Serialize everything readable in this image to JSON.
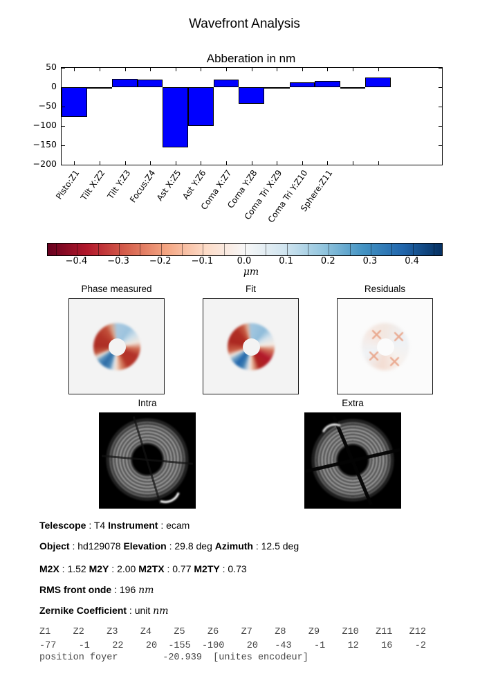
{
  "page_title": "Wavefront Analysis",
  "chart_data": {
    "type": "bar",
    "title": "Abberation in nm",
    "categories": [
      "Pisto:Z1",
      "Tilt X:Z2",
      "Tilt Y:Z3",
      "Focus:Z4",
      "Ast X:Z5",
      "Ast Y:Z6",
      "Coma X:Z7",
      "Coma Y:Z8",
      "Coma Tri X:Z9",
      "Coma Tri Y:Z10",
      "Sphere:Z11",
      "",
      ""
    ],
    "values": [
      -77,
      -1,
      22,
      20,
      -155,
      -100,
      20,
      -43,
      -1,
      12,
      16,
      -2,
      25
    ],
    "bar_color": "#0000ff",
    "ylim": [
      -200,
      50
    ],
    "yticks": [
      50,
      0,
      -50,
      -100,
      -150,
      -200
    ],
    "ytick_labels": [
      "50",
      "0",
      "−50",
      "−100",
      "−150",
      "−200"
    ],
    "xlabel": "",
    "ylabel": "",
    "grid": false,
    "legend": null
  },
  "colorbar": {
    "colormap": "RdBu",
    "colors": [
      "#67001f",
      "#b2182b",
      "#d6604d",
      "#f4a582",
      "#fddbc7",
      "#f7f7f7",
      "#d1e5f0",
      "#92c5de",
      "#4393c3",
      "#2166ac",
      "#053061"
    ],
    "range": [
      -0.47,
      0.47
    ],
    "tick_values": [
      -0.4,
      -0.3,
      -0.2,
      -0.1,
      0.0,
      0.1,
      0.2,
      0.3,
      0.4
    ],
    "tick_labels": [
      "−0.4",
      "−0.3",
      "−0.2",
      "−0.1",
      "0.0",
      "0.1",
      "0.2",
      "0.3",
      "0.4"
    ],
    "unit_label": "μm"
  },
  "panels": {
    "measured_title": "Phase measured",
    "fit_title": "Fit",
    "residuals_title": "Residuals"
  },
  "images": {
    "intra_title": "Intra",
    "extra_title": "Extra"
  },
  "info_lines": [
    [
      {
        "t": "Telescope",
        "b": true
      },
      {
        "t": " : T4 "
      },
      {
        "t": "Instrument",
        "b": true
      },
      {
        "t": " : ecam"
      }
    ],
    [
      {
        "t": "Object",
        "b": true
      },
      {
        "t": " : hd129078 "
      },
      {
        "t": "Elevation",
        "b": true
      },
      {
        "t": " : 29.8 deg "
      },
      {
        "t": "Azimuth",
        "b": true
      },
      {
        "t": " : 12.5 deg"
      }
    ],
    [
      {
        "t": "M2X",
        "b": true
      },
      {
        "t": " : 1.52 "
      },
      {
        "t": "M2Y",
        "b": true
      },
      {
        "t": " : 2.00 "
      },
      {
        "t": "M2TX",
        "b": true
      },
      {
        "t": " : 0.77 "
      },
      {
        "t": "M2TY",
        "b": true
      },
      {
        "t": " : 0.73"
      }
    ],
    [
      {
        "t": "RMS front onde",
        "b": true
      },
      {
        "t": " : 196 "
      },
      {
        "t": "nm",
        "m": true
      }
    ],
    [
      {
        "t": "Zernike Coefficient",
        "b": true
      },
      {
        "t": " : unit "
      },
      {
        "t": "nm",
        "m": true
      }
    ]
  ],
  "mono": {
    "header": "Z1    Z2    Z3    Z4    Z5    Z6    Z7    Z8    Z9    Z10   Z11   Z12",
    "values": "-77    -1    22    20  -155  -100    20   -43    -1    12    16    -2",
    "footer": "position foyer        -20.939  [unites encodeur]"
  }
}
